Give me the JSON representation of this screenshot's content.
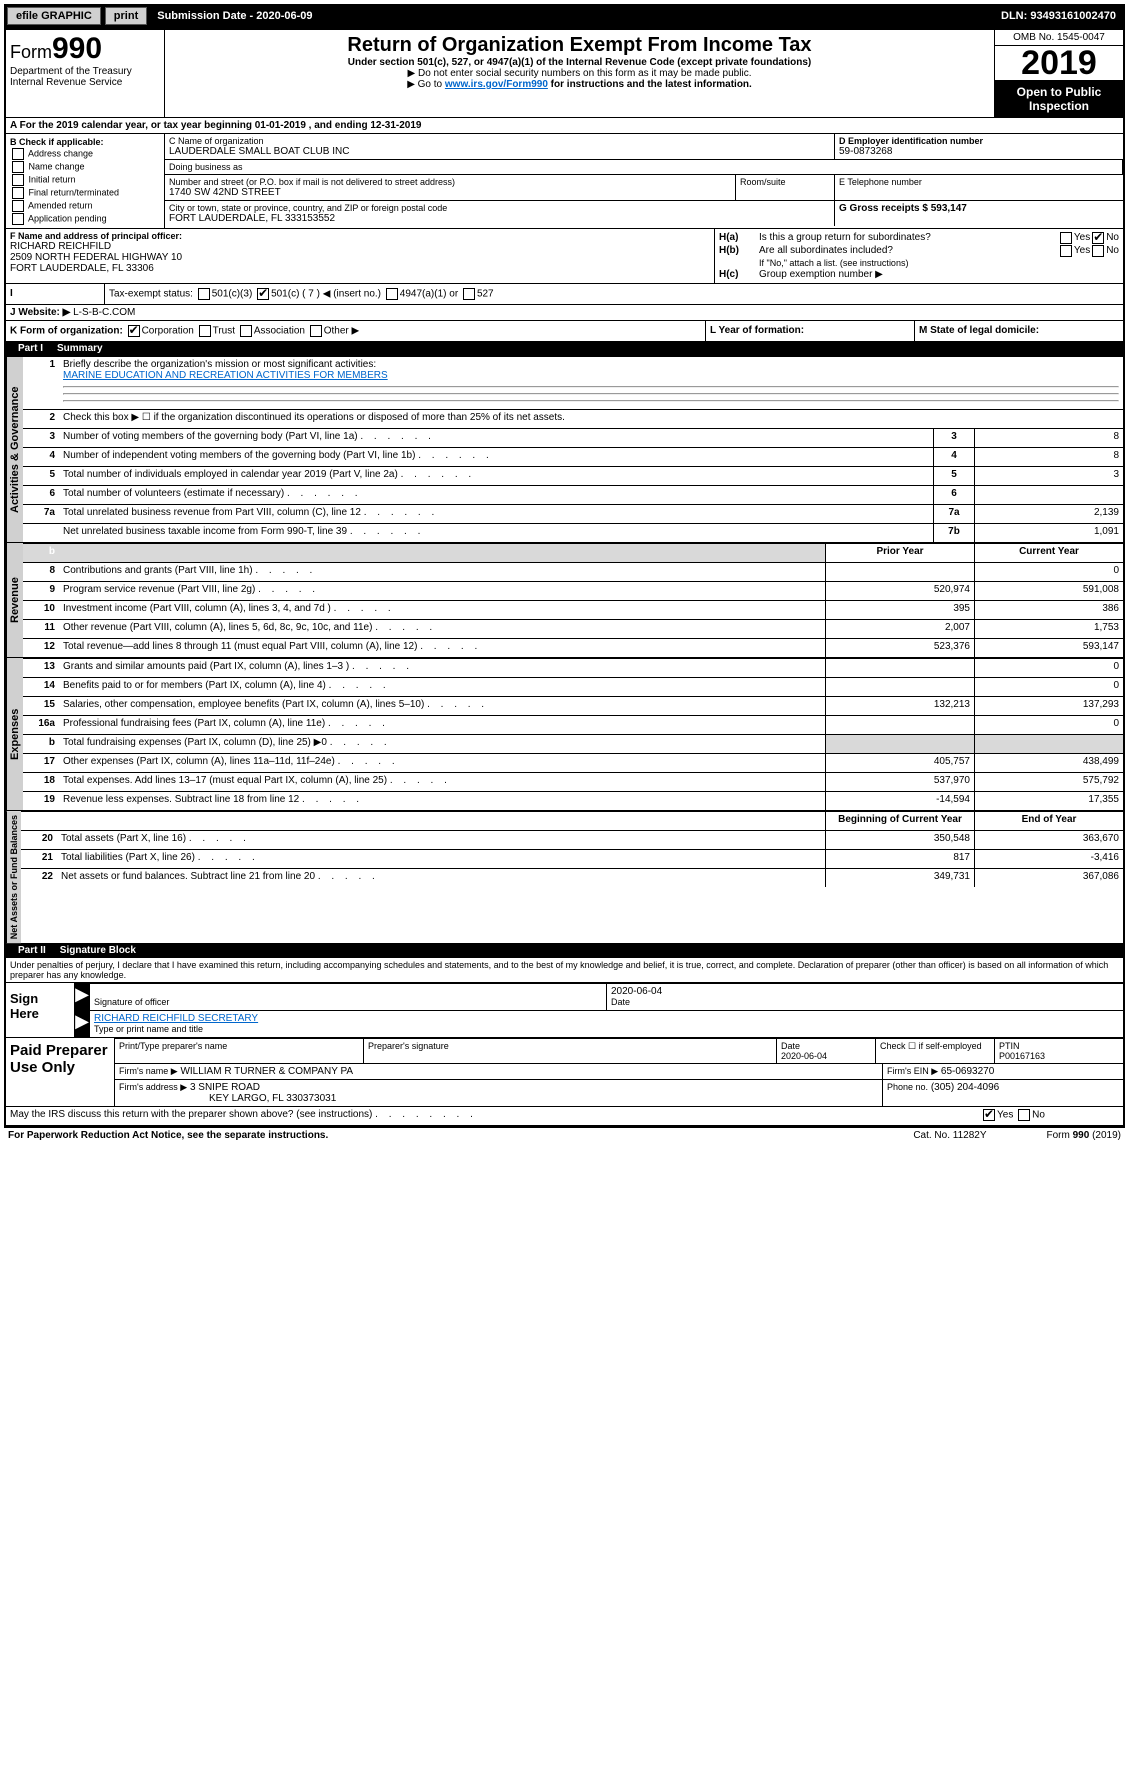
{
  "topbar": {
    "efile": "efile GRAPHIC",
    "print": "print",
    "sub_label": "Submission Date - 2020-06-09",
    "dln": "DLN: 93493161002470"
  },
  "header": {
    "form_prefix": "Form",
    "form_number": "990",
    "title": "Return of Organization Exempt From Income Tax",
    "subtitle": "Under section 501(c), 527, or 4947(a)(1) of the Internal Revenue Code (except private foundations)",
    "note1": "▶ Do not enter social security numbers on this form as it may be made public.",
    "note2_pre": "▶ Go to ",
    "note2_link": "www.irs.gov/Form990",
    "note2_post": " for instructions and the latest information.",
    "omb": "OMB No. 1545-0047",
    "year": "2019",
    "open": "Open to Public Inspection",
    "dept": "Department of the Treasury Internal Revenue Service"
  },
  "row_a": "For the 2019 calendar year, or tax year beginning 01-01-2019    , and ending 12-31-2019",
  "col_b": {
    "label": "B Check if applicable:",
    "items": [
      "Address change",
      "Name change",
      "Initial return",
      "Final return/terminated",
      "Amended return",
      "Application pending"
    ]
  },
  "c": {
    "label": "C Name of organization",
    "name": "LAUDERDALE SMALL BOAT CLUB INC",
    "dba_label": "Doing business as",
    "addr_label": "Number and street (or P.O. box if mail is not delivered to street address)",
    "addr": "1740 SW 42ND STREET",
    "room_label": "Room/suite",
    "city_label": "City or town, state or province, country, and ZIP or foreign postal code",
    "city": "FORT LAUDERDALE, FL  333153552"
  },
  "d": {
    "label": "D Employer identification number",
    "value": "59-0873268"
  },
  "e": {
    "label": "E Telephone number"
  },
  "g": {
    "label": "G Gross receipts $ 593,147"
  },
  "f": {
    "label": "F Name and address of principal officer:",
    "name": "RICHARD REICHFILD",
    "addr1": "2509 NORTH FEDERAL HIGHWAY 10",
    "addr2": "FORT LAUDERDALE, FL  33306"
  },
  "h": {
    "a_label": "Is this a group return for subordinates?",
    "b_label": "Are all subordinates included?",
    "b_note": "If \"No,\" attach a list. (see instructions)",
    "c_label": "Group exemption number ▶"
  },
  "i": {
    "label": "Tax-exempt status:",
    "opts": [
      "501(c)(3)",
      "501(c) ( 7 ) ◀ (insert no.)",
      "4947(a)(1) or",
      "527"
    ]
  },
  "j": {
    "label": "J   Website: ▶",
    "value": "L-S-B-C.COM"
  },
  "k": {
    "label": "K Form of organization:",
    "opts": [
      "Corporation",
      "Trust",
      "Association",
      "Other ▶"
    ],
    "l_label": "L Year of formation:",
    "m_label": "M State of legal domicile:"
  },
  "part1": {
    "num": "Part I",
    "title": "Summary"
  },
  "governance": {
    "label": "Activities & Governance",
    "l1_label": "Briefly describe the organization's mission or most significant activities:",
    "l1_text": "MARINE EDUCATION AND RECREATION ACTIVITIES FOR MEMBERS",
    "l2": "Check this box ▶ ☐  if the organization discontinued its operations or disposed of more than 25% of its net assets.",
    "rows": [
      {
        "n": "3",
        "t": "Number of voting members of the governing body (Part VI, line 1a)",
        "c": "3",
        "v": "8"
      },
      {
        "n": "4",
        "t": "Number of independent voting members of the governing body (Part VI, line 1b)",
        "c": "4",
        "v": "8"
      },
      {
        "n": "5",
        "t": "Total number of individuals employed in calendar year 2019 (Part V, line 2a)",
        "c": "5",
        "v": "3"
      },
      {
        "n": "6",
        "t": "Total number of volunteers (estimate if necessary)",
        "c": "6",
        "v": ""
      },
      {
        "n": "7a",
        "t": "Total unrelated business revenue from Part VIII, column (C), line 12",
        "c": "7a",
        "v": "2,139"
      },
      {
        "n": "",
        "t": "Net unrelated business taxable income from Form 990-T, line 39",
        "c": "7b",
        "v": "1,091"
      }
    ]
  },
  "revenue": {
    "label": "Revenue",
    "header_b": "b",
    "header_prior": "Prior Year",
    "header_curr": "Current Year",
    "rows": [
      {
        "n": "8",
        "t": "Contributions and grants (Part VIII, line 1h)",
        "p": "",
        "c": "0"
      },
      {
        "n": "9",
        "t": "Program service revenue (Part VIII, line 2g)",
        "p": "520,974",
        "c": "591,008"
      },
      {
        "n": "10",
        "t": "Investment income (Part VIII, column (A), lines 3, 4, and 7d )",
        "p": "395",
        "c": "386"
      },
      {
        "n": "11",
        "t": "Other revenue (Part VIII, column (A), lines 5, 6d, 8c, 9c, 10c, and 11e)",
        "p": "2,007",
        "c": "1,753"
      },
      {
        "n": "12",
        "t": "Total revenue—add lines 8 through 11 (must equal Part VIII, column (A), line 12)",
        "p": "523,376",
        "c": "593,147"
      }
    ]
  },
  "expenses": {
    "label": "Expenses",
    "rows": [
      {
        "n": "13",
        "t": "Grants and similar amounts paid (Part IX, column (A), lines 1–3 )",
        "p": "",
        "c": "0"
      },
      {
        "n": "14",
        "t": "Benefits paid to or for members (Part IX, column (A), line 4)",
        "p": "",
        "c": "0"
      },
      {
        "n": "15",
        "t": "Salaries, other compensation, employee benefits (Part IX, column (A), lines 5–10)",
        "p": "132,213",
        "c": "137,293"
      },
      {
        "n": "16a",
        "t": "Professional fundraising fees (Part IX, column (A), line 11e)",
        "p": "",
        "c": "0"
      },
      {
        "n": "b",
        "t": "Total fundraising expenses (Part IX, column (D), line 25) ▶0",
        "p": "shade",
        "c": "shade"
      },
      {
        "n": "17",
        "t": "Other expenses (Part IX, column (A), lines 11a–11d, 11f–24e)",
        "p": "405,757",
        "c": "438,499"
      },
      {
        "n": "18",
        "t": "Total expenses. Add lines 13–17 (must equal Part IX, column (A), line 25)",
        "p": "537,970",
        "c": "575,792"
      },
      {
        "n": "19",
        "t": "Revenue less expenses. Subtract line 18 from line 12",
        "p": "-14,594",
        "c": "17,355"
      }
    ]
  },
  "netassets": {
    "label": "Net Assets or Fund Balances",
    "header_prior": "Beginning of Current Year",
    "header_curr": "End of Year",
    "rows": [
      {
        "n": "20",
        "t": "Total assets (Part X, line 16)",
        "p": "350,548",
        "c": "363,670"
      },
      {
        "n": "21",
        "t": "Total liabilities (Part X, line 26)",
        "p": "817",
        "c": "-3,416"
      },
      {
        "n": "22",
        "t": "Net assets or fund balances. Subtract line 21 from line 20",
        "p": "349,731",
        "c": "367,086"
      }
    ]
  },
  "part2": {
    "num": "Part II",
    "title": "Signature Block"
  },
  "penalty": "Under penalties of perjury, I declare that I have examined this return, including accompanying schedules and statements, and to the best of my knowledge and belief, it is true, correct, and complete. Declaration of preparer (other than officer) is based on all information of which preparer has any knowledge.",
  "sign": {
    "here": "Sign Here",
    "sig_label": "Signature of officer",
    "date": "2020-06-04",
    "date_label": "Date",
    "name": "RICHARD REICHFILD  SECRETARY",
    "name_label": "Type or print name and title"
  },
  "paid": {
    "title": "Paid Preparer Use Only",
    "h1": "Print/Type preparer's name",
    "h2": "Preparer's signature",
    "h3": "Date",
    "h3v": "2020-06-04",
    "h4": "Check ☐ if self-employed",
    "h5": "PTIN",
    "h5v": "P00167163",
    "firm_label": "Firm's name    ▶",
    "firm": "WILLIAM R TURNER & COMPANY PA",
    "ein_label": "Firm's EIN ▶",
    "ein": "65-0693270",
    "addr_label": "Firm's address ▶",
    "addr1": "3 SNIPE ROAD",
    "addr2": "KEY LARGO, FL  330373031",
    "phone_label": "Phone no.",
    "phone": "(305) 204-4096"
  },
  "discuss": "May the IRS discuss this return with the preparer shown above? (see instructions)",
  "footer": {
    "left": "For Paperwork Reduction Act Notice, see the separate instructions.",
    "mid": "Cat. No. 11282Y",
    "right": "Form 990 (2019)"
  }
}
